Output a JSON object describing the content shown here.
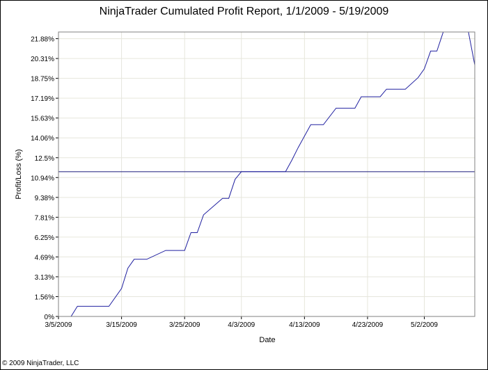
{
  "chart_data": {
    "type": "line",
    "title": "NinjaTrader Cumulated Profit Report, 1/1/2009 - 5/19/2009",
    "xlabel": "Date",
    "ylabel": "Profit/Loss (%)",
    "x_tick_labels": [
      "3/5/2009",
      "3/15/2009",
      "3/25/2009",
      "4/3/2009",
      "4/13/2009",
      "4/23/2009",
      "5/2/2009"
    ],
    "y_tick_labels": [
      "0%",
      "1.56%",
      "3.13%",
      "4.69%",
      "6.25%",
      "7.81%",
      "9.38%",
      "10.94%",
      "12.5%",
      "14.06%",
      "15.63%",
      "17.19%",
      "18.75%",
      "20.31%",
      "21.88%"
    ],
    "ylim": [
      0,
      22.4
    ],
    "grid": true,
    "reference_line": 11.4,
    "series": [
      {
        "color": "#2020a0",
        "x": [
          "3/5/2009",
          "3/7/2009",
          "3/8/2009",
          "3/13/2009",
          "3/15/2009",
          "3/16/2009",
          "3/17/2009",
          "3/18/2009",
          "3/19/2009",
          "3/22/2009",
          "3/23/2009",
          "3/24/2009",
          "3/25/2009",
          "3/26/2009",
          "3/27/2009",
          "3/28/2009",
          "3/31/2009",
          "4/1/2009",
          "4/2/2009",
          "4/3/2009",
          "4/10/2009",
          "4/11/2009",
          "4/12/2009",
          "4/14/2009",
          "4/15/2009",
          "4/16/2009",
          "4/18/2009",
          "4/19/2009",
          "4/21/2009",
          "4/22/2009",
          "4/25/2009",
          "4/26/2009",
          "4/27/2009",
          "4/28/2009",
          "4/29/2009",
          "5/1/2009",
          "5/2/2009",
          "5/3/2009",
          "5/4/2009",
          "5/5/2009",
          "5/8/2009",
          "5/9/2009",
          "5/10/2009"
        ],
        "y": [
          0,
          0,
          0.8,
          0.8,
          2.2,
          3.8,
          4.5,
          4.5,
          4.5,
          5.2,
          5.2,
          5.2,
          5.2,
          6.6,
          6.6,
          8.0,
          9.3,
          9.3,
          10.8,
          11.4,
          11.4,
          12.3,
          13.3,
          15.1,
          15.1,
          15.1,
          16.4,
          16.4,
          16.4,
          17.3,
          17.3,
          17.9,
          17.9,
          17.9,
          17.9,
          18.8,
          19.5,
          20.9,
          20.9,
          22.4,
          22.4,
          22.4,
          19.8
        ]
      }
    ]
  },
  "footer": "© 2009 NinjaTrader, LLC"
}
